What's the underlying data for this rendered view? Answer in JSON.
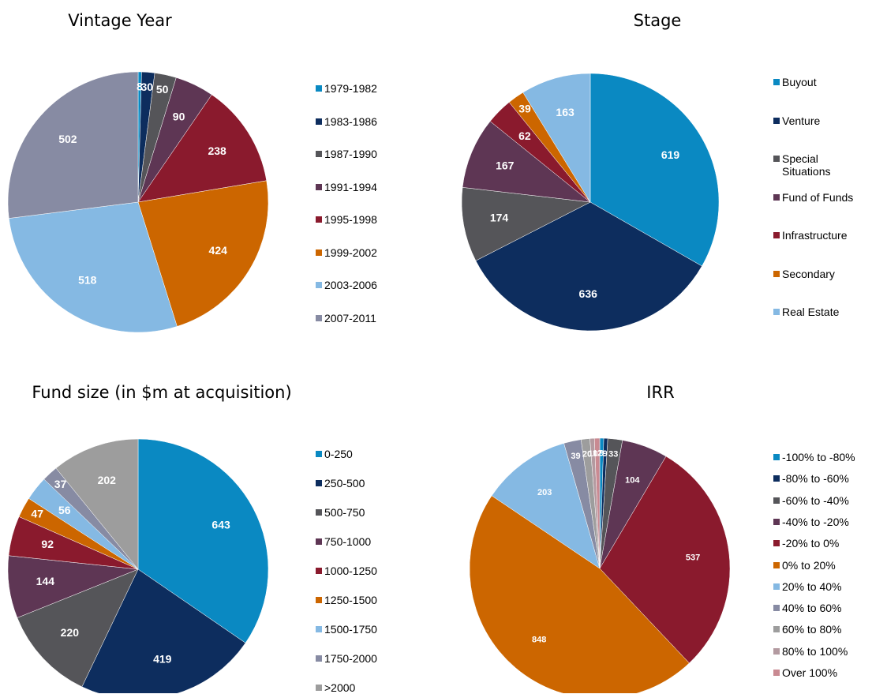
{
  "chart_data": [
    {
      "type": "pie",
      "title": "Vintage Year",
      "categories": [
        "1979-1982",
        "1983-1986",
        "1987-1990",
        "1991-1994",
        "1995-1998",
        "1999-2002",
        "2003-2006",
        "2007-2011"
      ],
      "values": [
        8,
        30,
        50,
        90,
        238,
        424,
        518,
        502
      ],
      "colors": [
        "#0a89c2",
        "#0d2d5e",
        "#555559",
        "#5e3654",
        "#8a1a2d",
        "#cc6600",
        "#85b9e3",
        "#878ba3"
      ]
    },
    {
      "type": "pie",
      "title": "Stage",
      "categories": [
        "Buyout",
        "Venture",
        "Special Situations",
        "Fund of Funds",
        "Infrastructure",
        "Secondary",
        "Real Estate"
      ],
      "values": [
        619,
        636,
        174,
        167,
        62,
        39,
        163
      ],
      "colors": [
        "#0a89c2",
        "#0d2d5e",
        "#555559",
        "#5e3654",
        "#8a1a2d",
        "#cc6600",
        "#85b9e3"
      ]
    },
    {
      "type": "pie",
      "title": "Fund size (in $m at acquisition)",
      "categories": [
        "0-250",
        "250-500",
        "500-750",
        "750-1000",
        "1000-1250",
        "1250-1500",
        "1500-1750",
        "1750-2000",
        ">2000"
      ],
      "values": [
        643,
        419,
        220,
        144,
        92,
        47,
        56,
        37,
        202
      ],
      "colors": [
        "#0a89c2",
        "#0d2d5e",
        "#555559",
        "#5e3654",
        "#8a1a2d",
        "#cc6600",
        "#85b9e3",
        "#878ba3",
        "#9d9d9d"
      ]
    },
    {
      "type": "pie",
      "title": "IRR",
      "categories": [
        "-100% to -80%",
        "-80% to -60%",
        "-60% to -40%",
        "-40% to -20%",
        "-20% to 0%",
        "0% to 20%",
        "20% to 40%",
        "40% to 60%",
        "60% to 80%",
        "80% to 100%",
        "Over 100%"
      ],
      "values": [
        9,
        9,
        33,
        104,
        537,
        848,
        203,
        39,
        20,
        10,
        12
      ],
      "colors": [
        "#0a89c2",
        "#0d2d5e",
        "#555559",
        "#5e3654",
        "#8a1a2d",
        "#cc6600",
        "#85b9e3",
        "#878ba3",
        "#9d9d9d",
        "#b39aa0",
        "#c98a92"
      ]
    }
  ]
}
